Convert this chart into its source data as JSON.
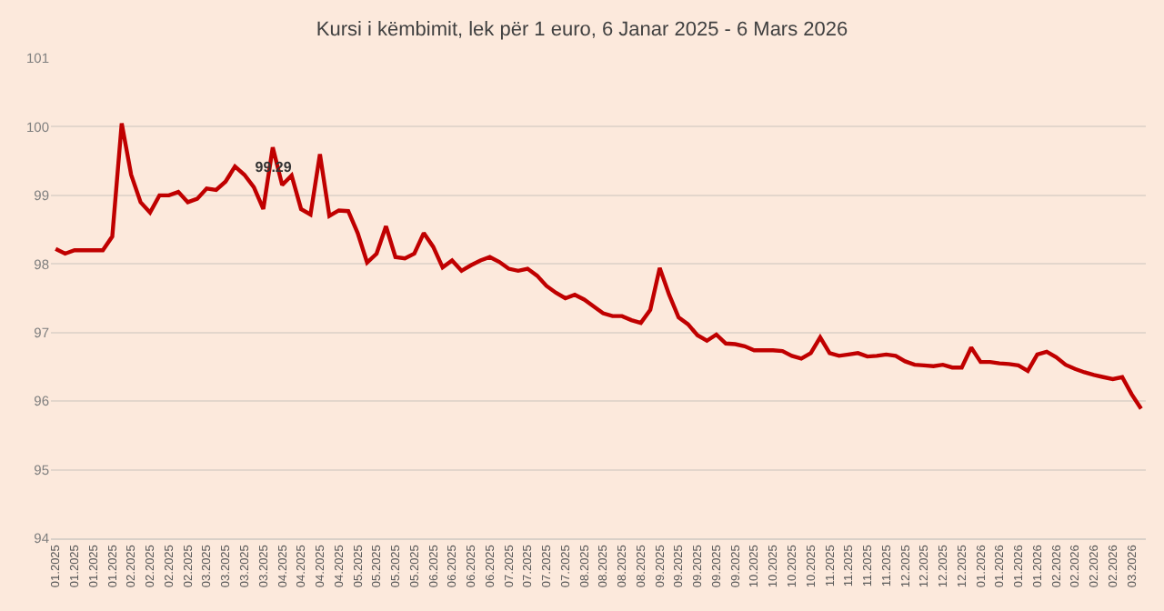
{
  "chart_data": {
    "type": "line",
    "title": "Kursi i këmbimit, lek për 1 euro, 6 Janar 2025 - 6 Mars 2026",
    "categories": [
      "01.2025",
      null,
      "01.2025",
      null,
      "01.2025",
      null,
      "01.2025",
      null,
      "02.2025",
      null,
      "02.2025",
      null,
      "02.2025",
      null,
      "02.2025",
      null,
      "03.2025",
      null,
      "03.2025",
      null,
      "03.2025",
      null,
      "03.2025",
      null,
      "04.2025",
      null,
      "04.2025",
      null,
      "04.2025",
      null,
      "04.2025",
      null,
      "05.2025",
      null,
      "05.2025",
      null,
      "05.2025",
      null,
      "05.2025",
      null,
      "06.2025",
      null,
      "06.2025",
      null,
      "06.2025",
      null,
      "06.2025",
      null,
      "07.2025",
      null,
      "07.2025",
      null,
      "07.2025",
      null,
      "07.2025",
      null,
      "08.2025",
      null,
      "08.2025",
      null,
      "08.2025",
      null,
      "08.2025",
      null,
      "09.2025",
      null,
      "09.2025",
      null,
      "09.2025",
      null,
      "09.2025",
      null,
      "09.2025",
      null,
      "10.2025",
      null,
      "10.2025",
      null,
      "10.2025",
      null,
      "10.2025",
      null,
      "11.2025",
      null,
      "11.2025",
      null,
      "11.2025",
      null,
      "11.2025",
      null,
      "12.2025",
      null,
      "12.2025",
      null,
      "12.2025",
      null,
      "12.2025",
      null,
      "01.2026",
      null,
      "01.2026",
      null,
      "01.2026",
      null,
      "01.2026",
      null,
      "02.2026",
      null,
      "02.2026",
      null,
      "02.2026",
      null,
      "02.2026",
      null,
      "03.2026",
      null
    ],
    "series": [
      {
        "color": "#c00000",
        "values": [
          98.22,
          98.15,
          98.2,
          98.2,
          98.2,
          98.2,
          98.4,
          100.05,
          99.3,
          98.9,
          98.75,
          99.0,
          99.0,
          99.05,
          98.9,
          98.95,
          99.1,
          99.08,
          99.2,
          99.42,
          99.3,
          99.12,
          98.8,
          99.7,
          99.15,
          99.29,
          98.8,
          98.72,
          99.6,
          98.7,
          98.78,
          98.77,
          98.45,
          98.02,
          98.15,
          98.55,
          98.1,
          98.08,
          98.15,
          98.45,
          98.25,
          97.95,
          98.05,
          97.9,
          97.98,
          98.05,
          98.1,
          98.03,
          97.93,
          97.9,
          97.93,
          97.83,
          97.68,
          97.58,
          97.5,
          97.55,
          97.48,
          97.38,
          97.28,
          97.24,
          97.24,
          97.18,
          97.14,
          97.33,
          97.94,
          97.55,
          97.22,
          97.12,
          96.96,
          96.88,
          96.97,
          96.84,
          96.83,
          96.8,
          96.74,
          96.74,
          96.74,
          96.73,
          96.66,
          96.62,
          96.7,
          96.93,
          96.7,
          96.66,
          96.68,
          96.7,
          96.65,
          96.66,
          96.68,
          96.66,
          96.58,
          96.53,
          96.52,
          96.51,
          96.53,
          96.49,
          96.49,
          96.78,
          96.57,
          96.57,
          96.55,
          96.54,
          96.52,
          96.44,
          96.68,
          96.72,
          96.64,
          96.53,
          96.47,
          96.42,
          96.38,
          96.35,
          96.32,
          96.35,
          96.1,
          95.89
        ],
        "value_labels": [
          null,
          null,
          null,
          null,
          null,
          null,
          null,
          null,
          null,
          null,
          null,
          null,
          null,
          null,
          null,
          null,
          null,
          null,
          null,
          null,
          null,
          null,
          null,
          null,
          null,
          "99.29",
          null,
          null,
          null,
          null,
          null,
          null,
          null,
          null,
          null,
          null,
          null,
          null,
          null,
          null,
          null,
          null,
          null,
          null,
          null,
          null,
          null,
          null,
          null,
          null,
          null,
          null,
          null,
          null,
          null,
          null,
          null,
          null,
          null,
          null,
          null,
          null,
          null,
          null,
          null,
          null,
          null,
          null,
          null,
          null,
          null,
          null,
          null,
          null,
          null,
          null,
          null,
          null,
          null,
          null,
          null,
          null,
          null,
          null,
          null,
          null,
          null,
          null,
          null,
          null,
          null,
          null,
          null,
          null,
          null,
          null,
          null,
          null,
          null,
          null,
          null,
          null,
          null,
          null,
          null,
          null,
          null,
          null,
          null,
          null,
          null,
          null,
          null,
          null,
          null,
          null
        ]
      }
    ],
    "ylim": [
      94,
      101
    ],
    "yticks": [
      94,
      95,
      96,
      97,
      98,
      99,
      100,
      101
    ],
    "grid": "y",
    "marker": "none",
    "line_style": "solid"
  }
}
